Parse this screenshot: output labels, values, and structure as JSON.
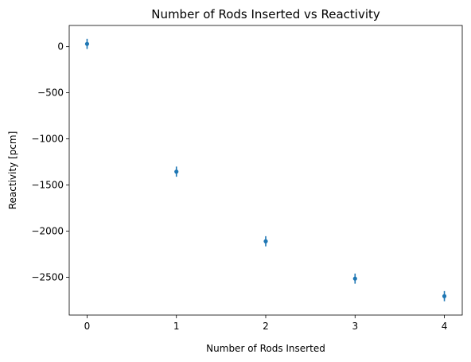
{
  "chart_data": {
    "type": "scatter",
    "title": "Number of Rods Inserted vs Reactivity",
    "xlabel": "Number of Rods Inserted",
    "ylabel": "Reactivity [pcm]",
    "xlim": [
      -0.2,
      4.2
    ],
    "ylim": [
      -2910,
      230
    ],
    "xticks": [
      0,
      1,
      2,
      3,
      4
    ],
    "xtick_labels": [
      "0",
      "1",
      "2",
      "3",
      "4"
    ],
    "yticks": [
      0,
      -500,
      -1000,
      -1500,
      -2000,
      -2500
    ],
    "ytick_labels": [
      "0",
      "−500",
      "−1000",
      "−1500",
      "−2000",
      "−2500"
    ],
    "grid": false,
    "legend": "none",
    "series": [
      {
        "color": "#1f77b4",
        "x": [
          0,
          1,
          2,
          3,
          4
        ],
        "y": [
          30,
          -1355,
          -2110,
          -2515,
          -2705
        ],
        "yerr": [
          55,
          55,
          55,
          55,
          55
        ]
      }
    ]
  }
}
